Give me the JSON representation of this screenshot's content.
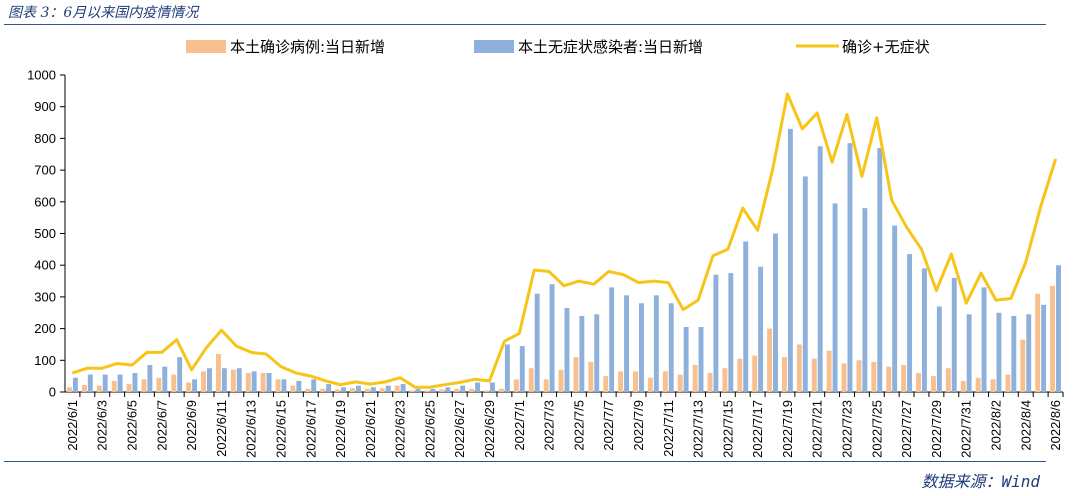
{
  "header": {
    "title": "图表 3：6月以来国内疫情情况"
  },
  "footer": {
    "source": "数据来源：Wind"
  },
  "colors": {
    "confirmed": "#f8bf8f",
    "asymptomatic": "#8eb1dc",
    "total": "#f7c418",
    "rule": "#2f5597"
  },
  "chart_data": {
    "type": "bar",
    "title": "",
    "xlabel": "",
    "ylabel": "",
    "ylim": [
      0,
      1000
    ],
    "yticks": [
      0,
      100,
      200,
      300,
      400,
      500,
      600,
      700,
      800,
      900,
      1000
    ],
    "grid": false,
    "legend_position": "top",
    "categories": [
      "2022/6/1",
      "2022/6/2",
      "2022/6/3",
      "2022/6/4",
      "2022/6/5",
      "2022/6/6",
      "2022/6/7",
      "2022/6/8",
      "2022/6/9",
      "2022/6/10",
      "2022/6/11",
      "2022/6/12",
      "2022/6/13",
      "2022/6/14",
      "2022/6/15",
      "2022/6/16",
      "2022/6/17",
      "2022/6/18",
      "2022/6/19",
      "2022/6/20",
      "2022/6/21",
      "2022/6/22",
      "2022/6/23",
      "2022/6/24",
      "2022/6/25",
      "2022/6/26",
      "2022/6/27",
      "2022/6/28",
      "2022/6/29",
      "2022/6/30",
      "2022/7/1",
      "2022/7/2",
      "2022/7/3",
      "2022/7/4",
      "2022/7/5",
      "2022/7/6",
      "2022/7/7",
      "2022/7/8",
      "2022/7/9",
      "2022/7/10",
      "2022/7/11",
      "2022/7/12",
      "2022/7/13",
      "2022/7/14",
      "2022/7/15",
      "2022/7/16",
      "2022/7/17",
      "2022/7/18",
      "2022/7/19",
      "2022/7/20",
      "2022/7/21",
      "2022/7/22",
      "2022/7/23",
      "2022/7/24",
      "2022/7/25",
      "2022/7/26",
      "2022/7/27",
      "2022/7/28",
      "2022/7/29",
      "2022/7/30",
      "2022/7/31",
      "2022/8/1",
      "2022/8/2",
      "2022/8/3",
      "2022/8/4",
      "2022/8/5",
      "2022/8/6"
    ],
    "x_tick_labels": [
      "2022/6/1",
      "2022/6/3",
      "2022/6/5",
      "2022/6/7",
      "2022/6/9",
      "2022/6/11",
      "2022/6/13",
      "2022/6/15",
      "2022/6/17",
      "2022/6/19",
      "2022/6/21",
      "2022/6/23",
      "2022/6/25",
      "2022/6/27",
      "2022/6/29",
      "2022/7/1",
      "2022/7/3",
      "2022/7/5",
      "2022/7/7",
      "2022/7/9",
      "2022/7/11",
      "2022/7/13",
      "2022/7/15",
      "2022/7/17",
      "2022/7/19",
      "2022/7/21",
      "2022/7/23",
      "2022/7/25",
      "2022/7/27",
      "2022/7/29",
      "2022/7/31",
      "2022/8/2",
      "2022/8/4",
      "2022/8/6"
    ],
    "series": [
      {
        "name": "本土确诊病例:当日新增",
        "type": "bar",
        "values": [
          15,
          22,
          20,
          35,
          25,
          40,
          45,
          55,
          30,
          65,
          120,
          70,
          60,
          60,
          40,
          20,
          10,
          10,
          8,
          12,
          10,
          12,
          20,
          5,
          5,
          8,
          10,
          10,
          5,
          10,
          40,
          75,
          40,
          70,
          110,
          95,
          50,
          65,
          65,
          45,
          65,
          55,
          85,
          60,
          75,
          105,
          115,
          200,
          110,
          150,
          105,
          130,
          90,
          100,
          95,
          80,
          85,
          60,
          50,
          75,
          35,
          45,
          40,
          55,
          165,
          310,
          335
        ]
      },
      {
        "name": "本土无症状感染者:当日新增",
        "type": "bar",
        "values": [
          45,
          55,
          55,
          55,
          60,
          85,
          80,
          110,
          40,
          75,
          75,
          75,
          65,
          60,
          40,
          35,
          40,
          25,
          15,
          20,
          15,
          20,
          25,
          10,
          10,
          15,
          20,
          30,
          30,
          150,
          145,
          310,
          340,
          265,
          240,
          245,
          330,
          305,
          280,
          305,
          280,
          205,
          205,
          370,
          375,
          475,
          395,
          500,
          830,
          680,
          775,
          595,
          785,
          580,
          770,
          525,
          435,
          390,
          270,
          360,
          245,
          330,
          250,
          240,
          245,
          275,
          400
        ]
      },
      {
        "name": "确诊+无症状",
        "type": "line",
        "values": [
          60,
          75,
          75,
          90,
          85,
          125,
          125,
          165,
          70,
          140,
          195,
          145,
          125,
          120,
          80,
          60,
          50,
          35,
          23,
          32,
          25,
          32,
          45,
          15,
          15,
          23,
          30,
          40,
          35,
          160,
          185,
          385,
          380,
          335,
          350,
          340,
          380,
          370,
          345,
          350,
          345,
          260,
          290,
          430,
          450,
          580,
          510,
          700,
          940,
          830,
          880,
          725,
          875,
          680,
          865,
          605,
          520,
          450,
          320,
          435,
          280,
          375,
          290,
          295,
          410,
          585,
          735
        ]
      }
    ]
  }
}
